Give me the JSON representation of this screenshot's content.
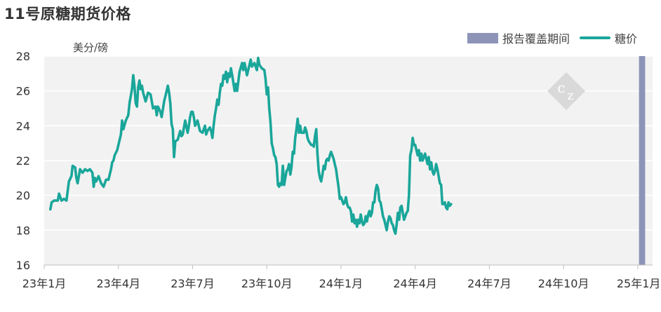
{
  "title": "11号原糖期货价格",
  "legend": {
    "period_label": "报告覆盖期间",
    "line_label": "糖价"
  },
  "colors": {
    "line": "#1aa69a",
    "period": "#8d94b8",
    "plot_bg": "#f2f2f2",
    "grid": "#ffffff"
  },
  "watermark_icon": "cz-diamond-logo",
  "chart_data": {
    "type": "line",
    "title": "11号原糖期货价格",
    "ylabel": "美分/磅",
    "xlabel": "",
    "ylim": [
      16,
      28
    ],
    "yticks": [
      16,
      18,
      20,
      22,
      24,
      26,
      28
    ],
    "xlim": [
      0,
      24.6
    ],
    "xticks": [
      {
        "x": 0,
        "label": "23年1月"
      },
      {
        "x": 3,
        "label": "23年4月"
      },
      {
        "x": 6,
        "label": "23年7月"
      },
      {
        "x": 9,
        "label": "23年10月"
      },
      {
        "x": 12,
        "label": "24年1月"
      },
      {
        "x": 15,
        "label": "24年4月"
      },
      {
        "x": 18,
        "label": "24年7月"
      },
      {
        "x": 21,
        "label": "24年10月"
      },
      {
        "x": 24,
        "label": "25年1月"
      }
    ],
    "grid": true,
    "legend_position": "top-right",
    "highlight_period": {
      "name": "报告覆盖期间",
      "x_start": 24.05,
      "x_end": 24.3
    },
    "series": [
      {
        "name": "糖价",
        "points": [
          [
            0.25,
            19.2
          ],
          [
            0.3,
            19.6
          ],
          [
            0.4,
            19.7
          ],
          [
            0.55,
            19.7
          ],
          [
            0.6,
            20.1
          ],
          [
            0.7,
            19.7
          ],
          [
            0.8,
            19.8
          ],
          [
            0.9,
            19.7
          ],
          [
            1.0,
            20.8
          ],
          [
            1.1,
            21.1
          ],
          [
            1.15,
            21.7
          ],
          [
            1.25,
            21.6
          ],
          [
            1.3,
            21.0
          ],
          [
            1.35,
            20.7
          ],
          [
            1.45,
            21.5
          ],
          [
            1.55,
            21.3
          ],
          [
            1.65,
            21.5
          ],
          [
            1.75,
            21.4
          ],
          [
            1.85,
            21.5
          ],
          [
            1.95,
            21.3
          ],
          [
            2.0,
            20.5
          ],
          [
            2.05,
            21.0
          ],
          [
            2.1,
            20.8
          ],
          [
            2.2,
            21.1
          ],
          [
            2.3,
            20.7
          ],
          [
            2.4,
            20.5
          ],
          [
            2.5,
            20.9
          ],
          [
            2.6,
            20.9
          ],
          [
            2.7,
            21.5
          ],
          [
            2.75,
            21.9
          ],
          [
            2.8,
            22.0
          ],
          [
            2.85,
            22.3
          ],
          [
            2.95,
            22.6
          ],
          [
            3.1,
            23.5
          ],
          [
            3.15,
            24.3
          ],
          [
            3.2,
            23.8
          ],
          [
            3.3,
            24.3
          ],
          [
            3.4,
            24.6
          ],
          [
            3.45,
            25.3
          ],
          [
            3.55,
            26.1
          ],
          [
            3.6,
            26.9
          ],
          [
            3.65,
            26.3
          ],
          [
            3.7,
            25.3
          ],
          [
            3.75,
            25.1
          ],
          [
            3.8,
            26.2
          ],
          [
            3.85,
            26.6
          ],
          [
            3.9,
            26.1
          ],
          [
            3.95,
            26.3
          ],
          [
            4.0,
            25.9
          ],
          [
            4.1,
            25.4
          ],
          [
            4.2,
            25.9
          ],
          [
            4.3,
            25.8
          ],
          [
            4.4,
            25.0
          ],
          [
            4.5,
            25.1
          ],
          [
            4.55,
            24.6
          ],
          [
            4.6,
            25.1
          ],
          [
            4.7,
            24.8
          ],
          [
            4.75,
            24.5
          ],
          [
            4.85,
            25.4
          ],
          [
            4.95,
            26.0
          ],
          [
            5.0,
            26.3
          ],
          [
            5.05,
            25.9
          ],
          [
            5.1,
            25.3
          ],
          [
            5.15,
            24.1
          ],
          [
            5.2,
            23.8
          ],
          [
            5.25,
            22.2
          ],
          [
            5.3,
            23.1
          ],
          [
            5.4,
            23.2
          ],
          [
            5.5,
            23.7
          ],
          [
            5.55,
            23.4
          ],
          [
            5.6,
            23.5
          ],
          [
            5.7,
            24.3
          ],
          [
            5.8,
            23.6
          ],
          [
            5.85,
            24.0
          ],
          [
            5.9,
            24.5
          ],
          [
            5.95,
            24.8
          ],
          [
            6.0,
            24.8
          ],
          [
            6.05,
            24.5
          ],
          [
            6.1,
            24.0
          ],
          [
            6.2,
            24.3
          ],
          [
            6.3,
            23.7
          ],
          [
            6.4,
            23.6
          ],
          [
            6.5,
            24.0
          ],
          [
            6.55,
            23.5
          ],
          [
            6.6,
            23.7
          ],
          [
            6.7,
            23.9
          ],
          [
            6.75,
            23.7
          ],
          [
            6.8,
            23.3
          ],
          [
            6.85,
            24.0
          ],
          [
            6.9,
            24.6
          ],
          [
            6.95,
            25.0
          ],
          [
            7.0,
            25.5
          ],
          [
            7.05,
            25.2
          ],
          [
            7.1,
            25.9
          ],
          [
            7.15,
            26.4
          ],
          [
            7.2,
            26.3
          ],
          [
            7.25,
            26.9
          ],
          [
            7.3,
            26.7
          ],
          [
            7.35,
            27.1
          ],
          [
            7.4,
            26.5
          ],
          [
            7.45,
            27.0
          ],
          [
            7.5,
            26.8
          ],
          [
            7.55,
            27.3
          ],
          [
            7.6,
            26.9
          ],
          [
            7.7,
            26.0
          ],
          [
            7.75,
            26.4
          ],
          [
            7.8,
            26.0
          ],
          [
            7.9,
            27.1
          ],
          [
            8.0,
            27.6
          ],
          [
            8.05,
            27.2
          ],
          [
            8.1,
            27.6
          ],
          [
            8.2,
            26.9
          ],
          [
            8.3,
            27.5
          ],
          [
            8.35,
            27.8
          ],
          [
            8.4,
            27.4
          ],
          [
            8.5,
            27.6
          ],
          [
            8.6,
            27.2
          ],
          [
            8.65,
            27.9
          ],
          [
            8.7,
            27.5
          ],
          [
            8.8,
            27.3
          ],
          [
            8.9,
            27.2
          ],
          [
            8.95,
            26.7
          ],
          [
            9.0,
            25.8
          ],
          [
            9.05,
            26.2
          ],
          [
            9.1,
            25.0
          ],
          [
            9.15,
            24.2
          ],
          [
            9.2,
            23.0
          ],
          [
            9.25,
            22.7
          ],
          [
            9.3,
            22.3
          ],
          [
            9.35,
            22.2
          ],
          [
            9.4,
            21.8
          ],
          [
            9.45,
            20.6
          ],
          [
            9.5,
            20.5
          ],
          [
            9.55,
            20.7
          ],
          [
            9.6,
            20.6
          ],
          [
            9.65,
            21.7
          ],
          [
            9.7,
            20.6
          ],
          [
            9.75,
            21.0
          ],
          [
            9.8,
            21.4
          ],
          [
            9.85,
            21.5
          ],
          [
            9.9,
            21.8
          ],
          [
            9.95,
            21.2
          ],
          [
            10.0,
            21.6
          ],
          [
            10.05,
            22.5
          ],
          [
            10.1,
            22.4
          ],
          [
            10.15,
            23.3
          ],
          [
            10.2,
            23.8
          ],
          [
            10.25,
            24.4
          ],
          [
            10.3,
            23.6
          ],
          [
            10.35,
            24.0
          ],
          [
            10.4,
            23.6
          ],
          [
            10.5,
            23.6
          ],
          [
            10.55,
            23.9
          ],
          [
            10.6,
            23.7
          ],
          [
            10.65,
            23.3
          ],
          [
            10.7,
            23.1
          ],
          [
            10.75,
            23.0
          ],
          [
            10.8,
            22.9
          ],
          [
            10.85,
            22.9
          ],
          [
            10.9,
            22.8
          ],
          [
            10.95,
            23.4
          ],
          [
            11.0,
            23.8
          ],
          [
            11.05,
            22.4
          ],
          [
            11.1,
            21.4
          ],
          [
            11.15,
            21.0
          ],
          [
            11.2,
            20.8
          ],
          [
            11.25,
            21.2
          ],
          [
            11.3,
            21.7
          ],
          [
            11.35,
            21.5
          ],
          [
            11.4,
            22.0
          ],
          [
            11.45,
            22.1
          ],
          [
            11.5,
            22.0
          ],
          [
            11.55,
            22.3
          ],
          [
            11.6,
            22.5
          ],
          [
            11.65,
            22.3
          ],
          [
            11.7,
            22.1
          ],
          [
            11.75,
            21.8
          ],
          [
            11.8,
            21.5
          ],
          [
            11.85,
            21.0
          ],
          [
            11.9,
            20.5
          ],
          [
            11.95,
            19.8
          ],
          [
            12.0,
            19.9
          ],
          [
            12.05,
            19.7
          ],
          [
            12.1,
            19.5
          ],
          [
            12.15,
            19.6
          ],
          [
            12.2,
            19.9
          ],
          [
            12.25,
            19.5
          ],
          [
            12.3,
            19.3
          ],
          [
            12.35,
            19.3
          ],
          [
            12.4,
            19.1
          ],
          [
            12.45,
            18.5
          ],
          [
            12.5,
            18.9
          ],
          [
            12.55,
            18.4
          ],
          [
            12.6,
            18.6
          ],
          [
            12.65,
            18.2
          ],
          [
            12.7,
            18.6
          ],
          [
            12.75,
            18.4
          ],
          [
            12.8,
            18.9
          ],
          [
            12.85,
            18.5
          ],
          [
            12.9,
            18.3
          ],
          [
            12.95,
            18.4
          ],
          [
            13.0,
            18.8
          ],
          [
            13.05,
            18.5
          ],
          [
            13.1,
            18.9
          ],
          [
            13.15,
            19.1
          ],
          [
            13.2,
            18.8
          ],
          [
            13.25,
            19.0
          ],
          [
            13.3,
            19.6
          ],
          [
            13.35,
            19.6
          ],
          [
            13.4,
            20.3
          ],
          [
            13.45,
            20.6
          ],
          [
            13.5,
            20.4
          ],
          [
            13.55,
            19.7
          ],
          [
            13.6,
            19.6
          ],
          [
            13.65,
            19.2
          ],
          [
            13.7,
            18.8
          ],
          [
            13.75,
            18.6
          ],
          [
            13.8,
            18.3
          ],
          [
            13.85,
            18.0
          ],
          [
            13.9,
            18.5
          ],
          [
            13.95,
            18.8
          ],
          [
            14.0,
            18.7
          ],
          [
            14.05,
            18.4
          ],
          [
            14.1,
            18.3
          ],
          [
            14.15,
            18.0
          ],
          [
            14.2,
            17.8
          ],
          [
            14.25,
            18.3
          ],
          [
            14.3,
            19.0
          ],
          [
            14.35,
            18.6
          ],
          [
            14.4,
            19.3
          ],
          [
            14.45,
            19.4
          ],
          [
            14.5,
            19.0
          ],
          [
            14.55,
            18.6
          ],
          [
            14.6,
            18.8
          ],
          [
            14.65,
            19.0
          ],
          [
            14.7,
            19.1
          ],
          [
            14.75,
            20.0
          ],
          [
            14.8,
            22.3
          ],
          [
            14.85,
            22.6
          ],
          [
            14.9,
            23.3
          ],
          [
            14.95,
            22.9
          ],
          [
            15.0,
            22.9
          ],
          [
            15.05,
            22.6
          ],
          [
            15.1,
            22.3
          ],
          [
            15.15,
            22.6
          ],
          [
            15.2,
            22.0
          ],
          [
            15.25,
            22.4
          ],
          [
            15.3,
            22.0
          ],
          [
            15.35,
            22.2
          ],
          [
            15.4,
            22.4
          ],
          [
            15.45,
            22.1
          ],
          [
            15.5,
            21.8
          ],
          [
            15.55,
            22.2
          ],
          [
            15.6,
            21.5
          ],
          [
            15.65,
            21.9
          ],
          [
            15.7,
            21.4
          ],
          [
            15.75,
            21.2
          ],
          [
            15.8,
            21.4
          ],
          [
            15.85,
            21.8
          ],
          [
            15.9,
            21.5
          ],
          [
            15.95,
            21.1
          ],
          [
            16.0,
            20.7
          ],
          [
            16.05,
            20.6
          ],
          [
            16.1,
            19.5
          ],
          [
            16.15,
            19.5
          ],
          [
            16.2,
            19.6
          ],
          [
            16.25,
            19.3
          ],
          [
            16.3,
            19.2
          ],
          [
            16.35,
            19.6
          ],
          [
            16.4,
            19.4
          ],
          [
            16.45,
            19.5
          ]
        ]
      }
    ]
  }
}
